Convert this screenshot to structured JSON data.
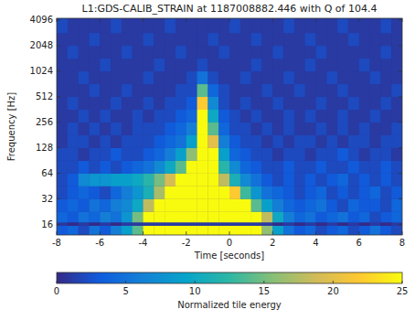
{
  "chart_data": {
    "type": "heatmap",
    "title": "L1:GDS-CALIB_STRAIN at 1187008882.446 with Q of 104.4",
    "x_label": "Time [seconds]",
    "y_label": "Frequency [Hz]",
    "xlim": [
      -8,
      8
    ],
    "xticks": [
      -8,
      -6,
      -4,
      -2,
      0,
      2,
      4,
      6,
      8
    ],
    "ylim": [
      12,
      4300
    ],
    "yticks": [
      16,
      32,
      64,
      128,
      256,
      512,
      1024,
      2048,
      4096
    ],
    "log": "y",
    "x_edges": [
      -8,
      -7.5,
      -7,
      -6.5,
      -6,
      -5.5,
      -5,
      -4.5,
      -4,
      -3.5,
      -3,
      -2.5,
      -2,
      -1.5,
      -1,
      -0.5,
      0,
      0.5,
      1,
      1.5,
      2,
      2.5,
      3,
      3.5,
      4,
      4.5,
      5,
      5.5,
      6,
      6.5,
      7,
      7.5,
      8
    ],
    "y_edges": [
      12,
      15.5,
      17,
      22.6,
      32,
      45.3,
      64,
      90.5,
      128,
      181,
      256,
      362,
      512,
      724,
      1024,
      1448,
      2048,
      2896,
      4300
    ],
    "cells": [
      [
        3,
        4,
        2,
        5,
        3,
        6,
        9,
        14,
        25,
        25,
        25,
        25,
        25,
        25,
        25,
        25,
        25,
        25,
        25,
        16,
        9,
        5,
        3,
        4,
        2,
        3,
        4,
        2,
        3,
        5,
        3,
        2
      ],
      [
        1,
        0,
        1,
        0,
        1,
        0,
        1,
        1,
        1,
        1,
        1,
        1,
        1,
        1,
        1,
        1,
        1,
        1,
        1,
        1,
        0,
        1,
        0,
        1,
        0,
        1,
        0,
        1,
        0,
        1,
        0,
        1
      ],
      [
        4,
        3,
        5,
        4,
        6,
        5,
        8,
        15,
        25,
        25,
        25,
        25,
        25,
        25,
        25,
        25,
        25,
        25,
        25,
        18,
        10,
        6,
        4,
        5,
        3,
        4,
        5,
        3,
        4,
        2,
        3,
        4
      ],
      [
        3,
        4,
        3,
        5,
        4,
        6,
        7,
        10,
        18,
        25,
        25,
        25,
        25,
        25,
        25,
        25,
        25,
        25,
        14,
        9,
        6,
        4,
        3,
        4,
        5,
        3,
        2,
        4,
        3,
        3,
        2,
        4
      ],
      [
        2,
        3,
        4,
        3,
        2,
        4,
        6,
        8,
        11,
        17,
        25,
        25,
        25,
        25,
        25,
        25,
        22,
        13,
        8,
        5,
        4,
        3,
        2,
        3,
        4,
        2,
        3,
        2,
        3,
        4,
        2,
        3
      ],
      [
        2,
        3,
        7,
        8,
        8,
        9,
        9,
        10,
        12,
        15,
        19,
        25,
        25,
        25,
        25,
        18,
        11,
        7,
        5,
        3,
        2,
        3,
        2,
        3,
        2,
        3,
        4,
        2,
        3,
        2,
        3,
        2
      ],
      [
        2,
        2,
        3,
        2,
        3,
        2,
        3,
        4,
        5,
        7,
        10,
        14,
        25,
        25,
        25,
        12,
        7,
        4,
        3,
        2,
        2,
        3,
        2,
        2,
        3,
        2,
        2,
        3,
        2,
        2,
        3,
        2
      ],
      [
        2,
        2,
        1,
        2,
        2,
        3,
        2,
        2,
        3,
        4,
        6,
        9,
        16,
        25,
        25,
        9,
        4,
        3,
        2,
        2,
        1,
        2,
        2,
        1,
        2,
        2,
        3,
        2,
        1,
        2,
        2,
        1
      ],
      [
        1,
        2,
        2,
        1,
        2,
        1,
        2,
        2,
        2,
        3,
        4,
        5,
        9,
        25,
        20,
        6,
        3,
        2,
        2,
        1,
        2,
        1,
        2,
        2,
        1,
        2,
        1,
        2,
        2,
        1,
        2,
        2
      ],
      [
        1,
        2,
        1,
        2,
        1,
        2,
        1,
        2,
        2,
        2,
        3,
        4,
        6,
        25,
        14,
        4,
        2,
        2,
        1,
        2,
        1,
        2,
        1,
        1,
        2,
        1,
        2,
        1,
        2,
        1,
        1,
        2
      ],
      [
        1,
        1,
        2,
        1,
        2,
        1,
        1,
        2,
        1,
        2,
        2,
        3,
        4,
        25,
        10,
        3,
        2,
        1,
        2,
        1,
        1,
        2,
        1,
        2,
        1,
        1,
        2,
        1,
        1,
        2,
        1,
        1
      ],
      [
        1,
        2,
        1,
        1,
        1,
        2,
        1,
        1,
        2,
        1,
        2,
        2,
        3,
        22,
        7,
        2,
        1,
        2,
        1,
        1,
        2,
        1,
        1,
        1,
        2,
        1,
        1,
        2,
        1,
        1,
        2,
        1
      ],
      [
        1,
        1,
        1,
        2,
        1,
        1,
        2,
        1,
        1,
        1,
        1,
        2,
        2,
        14,
        4,
        2,
        1,
        1,
        1,
        2,
        1,
        1,
        2,
        1,
        1,
        1,
        2,
        1,
        1,
        1,
        1,
        2
      ],
      [
        1,
        1,
        2,
        1,
        1,
        1,
        1,
        1,
        2,
        1,
        1,
        1,
        2,
        5,
        2,
        1,
        1,
        2,
        1,
        1,
        1,
        2,
        1,
        1,
        1,
        2,
        1,
        1,
        1,
        2,
        1,
        1
      ],
      [
        1,
        1,
        1,
        1,
        2,
        1,
        1,
        1,
        1,
        2,
        1,
        1,
        1,
        2,
        1,
        1,
        1,
        1,
        2,
        1,
        1,
        1,
        1,
        2,
        1,
        1,
        1,
        1,
        2,
        1,
        1,
        1
      ],
      [
        1,
        2,
        1,
        1,
        1,
        1,
        2,
        1,
        1,
        1,
        1,
        2,
        1,
        1,
        1,
        2,
        1,
        1,
        1,
        1,
        2,
        1,
        1,
        1,
        2,
        1,
        1,
        1,
        1,
        1,
        2,
        1
      ],
      [
        1,
        1,
        1,
        2,
        1,
        1,
        1,
        1,
        2,
        1,
        1,
        1,
        1,
        1,
        2,
        1,
        1,
        1,
        2,
        1,
        1,
        1,
        1,
        2,
        1,
        1,
        1,
        2,
        1,
        1,
        1,
        1
      ],
      [
        2,
        1,
        1,
        1,
        1,
        2,
        1,
        1,
        1,
        1,
        2,
        1,
        1,
        1,
        1,
        1,
        2,
        1,
        1,
        1,
        1,
        2,
        1,
        1,
        1,
        1,
        2,
        1,
        1,
        1,
        2,
        1
      ]
    ],
    "colorbar": {
      "label": "Normalized tile energy",
      "range": [
        0,
        25
      ],
      "ticks": [
        0,
        5,
        10,
        15,
        20,
        25
      ]
    }
  }
}
